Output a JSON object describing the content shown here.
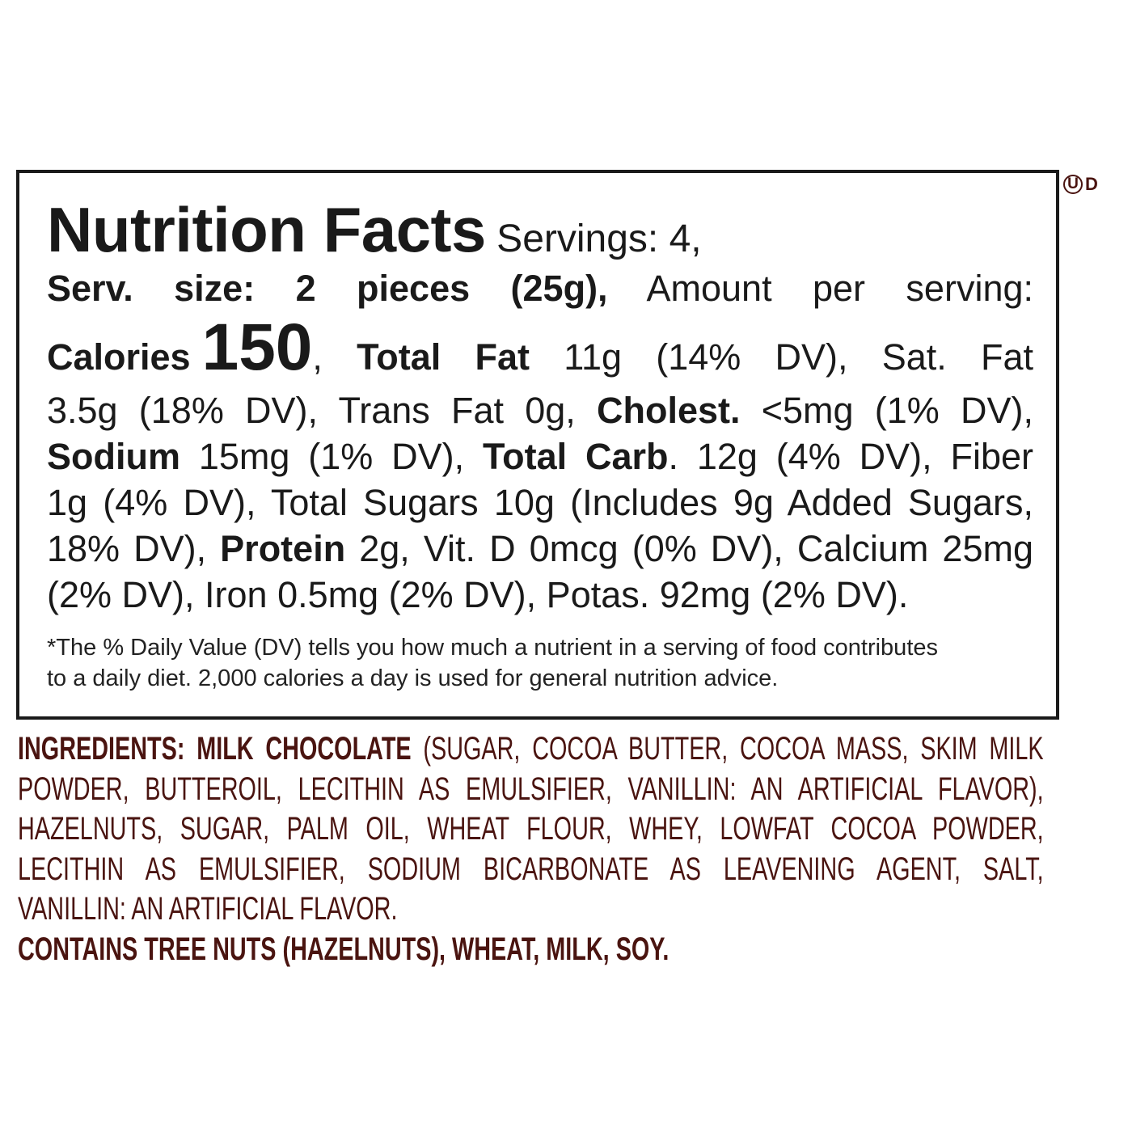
{
  "nutrition": {
    "title": "Nutrition Facts",
    "servings": " Servings: 4,",
    "lines": [
      [
        {
          "t": "Serv. size: 2 pieces (25g),",
          "s": "b"
        },
        {
          "t": " Amount per serving:"
        }
      ],
      [
        {
          "t": "Calories",
          "s": "b"
        },
        {
          "t": "150",
          "s": "big"
        },
        {
          "t": ", "
        },
        {
          "t": "Total Fat",
          "s": "b"
        },
        {
          "t": " 11g (14% DV), Sat. Fat"
        }
      ],
      [
        {
          "t": "3.5g (18% DV), Trans Fat 0g, "
        },
        {
          "t": "Cholest.",
          "s": "b"
        },
        {
          "t": " <5mg (1% DV),"
        }
      ],
      [
        {
          "t": "Sodium",
          "s": "b"
        },
        {
          "t": " 15mg (1% DV), "
        },
        {
          "t": "Total Carb",
          "s": "b"
        },
        {
          "t": ". 12g (4% DV), Fiber"
        }
      ],
      [
        {
          "t": "1g (4% DV), Total Sugars 10g (Includes 9g Added Sugars,"
        }
      ],
      [
        {
          "t": "18% DV), "
        },
        {
          "t": "Protein",
          "s": "b"
        },
        {
          "t": " 2g, Vit. D 0mcg (0% DV), Calcium 25mg"
        }
      ],
      [
        {
          "t": "(2% DV), Iron 0.5mg (2% DV), Potas. 92mg (2% DV)."
        }
      ]
    ],
    "footnote": [
      "*The % Daily Value (DV) tells you how much a nutrient in a serving of food contributes",
      "to a daily diet. 2,000 calories a day is used for general nutrition advice."
    ]
  },
  "kosher_mark": {
    "symbol": "U",
    "suffix": "D",
    "color": "#4a1410"
  },
  "ingredients": {
    "color": "#4a1410",
    "lines": [
      [
        {
          "t": "INGREDIENTS: MILK CHOCOLATE",
          "s": "b"
        },
        {
          "t": " (SUGAR, COCOA BUTTER, COCOA MASS, SKIM MILK"
        }
      ],
      [
        {
          "t": "POWDER, BUTTEROIL, LECITHIN AS EMULSIFIER, VANILLIN: AN ARTIFICIAL FLAVOR),"
        }
      ],
      [
        {
          "t": "HAZELNUTS, SUGAR, PALM OIL, WHEAT FLOUR, WHEY, LOWFAT COCOA POWDER,"
        }
      ],
      [
        {
          "t": "LECITHIN AS EMULSIFIER, SODIUM BICARBONATE AS LEAVENING AGENT, SALT,"
        }
      ],
      [
        {
          "t": "VANILLIN: AN ARTIFICIAL FLAVOR."
        }
      ],
      [
        {
          "t": "CONTAINS TREE NUTS (HAZELNUTS), WHEAT, MILK, SOY.",
          "s": "b"
        }
      ]
    ]
  }
}
